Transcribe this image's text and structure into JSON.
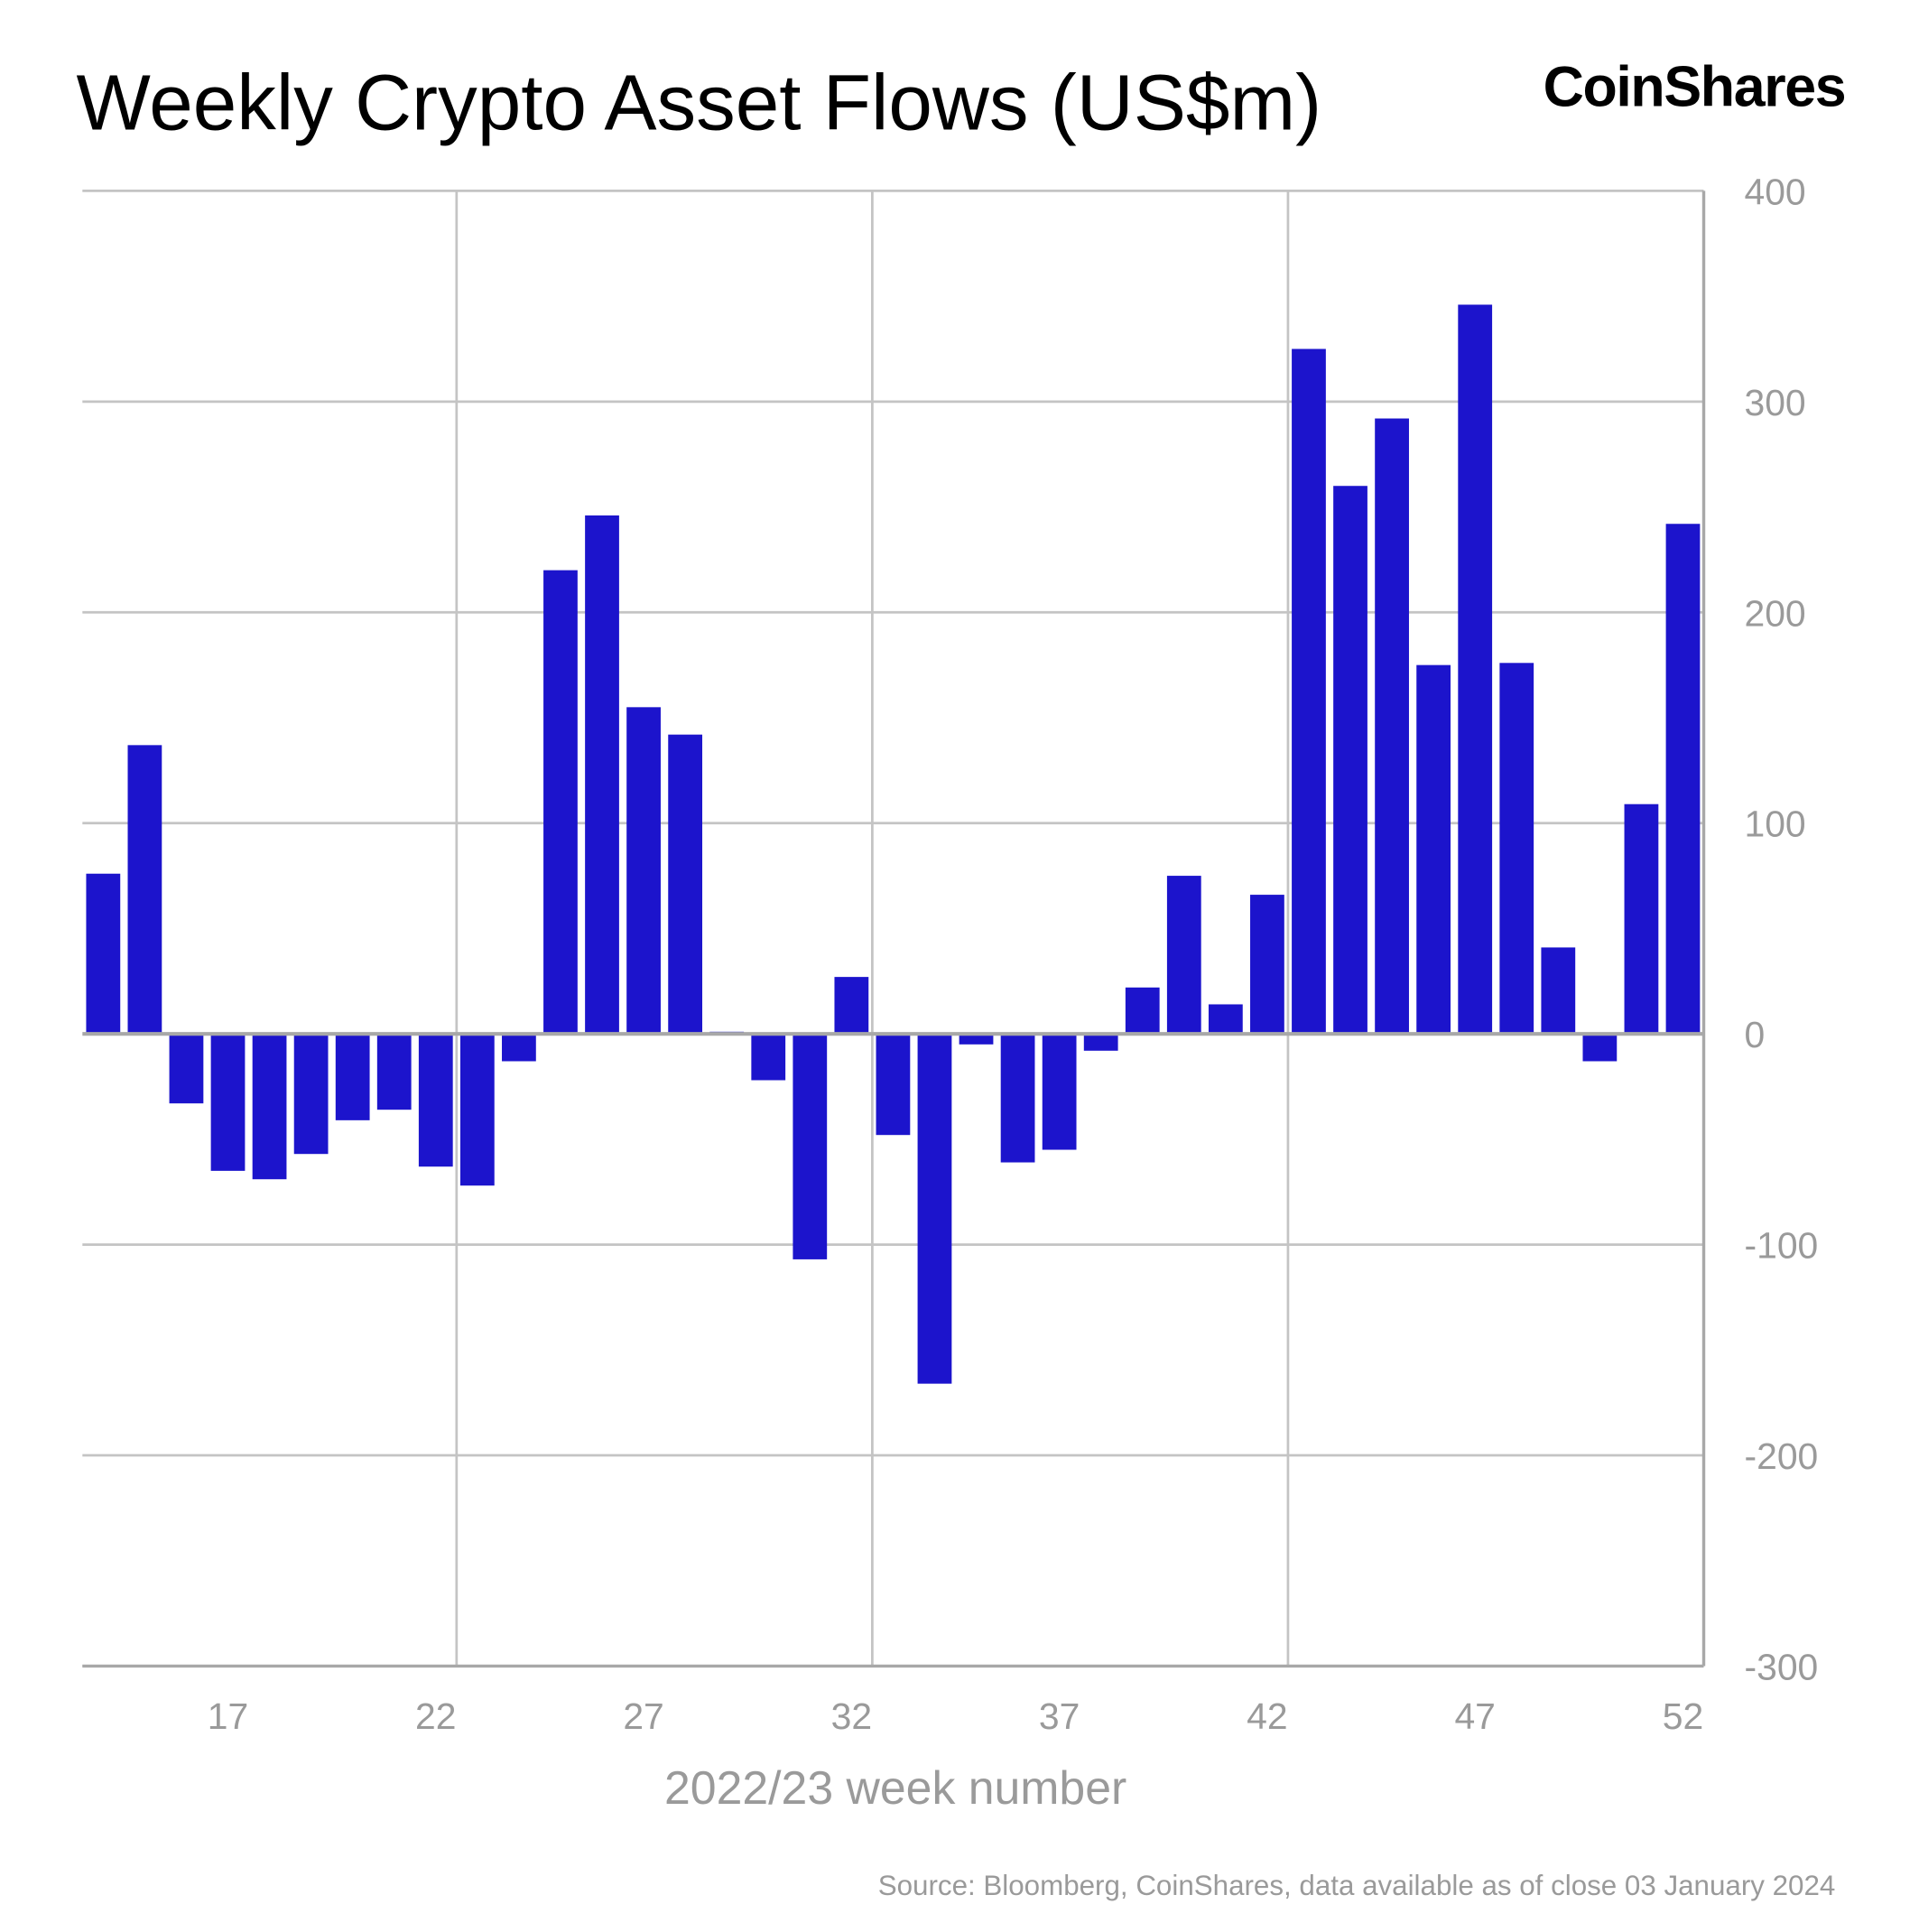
{
  "chart_data": {
    "type": "bar",
    "title": "Weekly Crypto Asset Flows (US$m)",
    "logo": "CoinShares",
    "xlabel": "2022/23 week number",
    "ylabel": "",
    "source": "Source: Bloomberg, CoinShares, data available as of close 03 January 2024",
    "ylim": [
      -300,
      400
    ],
    "yticks": [
      "400",
      "300",
      "200",
      "100",
      "0",
      "-100",
      "-200",
      "-300"
    ],
    "ytick_values": [
      400,
      300,
      200,
      100,
      0,
      -100,
      -200,
      -300
    ],
    "xticks": [
      "17",
      "22",
      "27",
      "32",
      "37",
      "42",
      "47",
      "52"
    ],
    "xtick_values": [
      17,
      22,
      27,
      32,
      37,
      42,
      47,
      52
    ],
    "y_axis_position": "right",
    "grid": true,
    "bar_color": "#1c14cc",
    "categories": [
      14,
      15,
      16,
      17,
      18,
      19,
      20,
      21,
      22,
      23,
      24,
      25,
      26,
      27,
      28,
      29,
      30,
      31,
      32,
      33,
      34,
      35,
      36,
      37,
      38,
      39,
      40,
      41,
      42,
      43,
      44,
      45,
      46,
      47,
      48,
      49,
      50,
      51,
      52
    ],
    "values": [
      76,
      137,
      -33,
      -65,
      -69,
      -57,
      -41,
      -36,
      -63,
      -72,
      -13,
      220,
      246,
      155,
      142,
      1,
      -22,
      -107,
      27,
      -48,
      -166,
      -5,
      -61,
      -55,
      -8,
      22,
      75,
      14,
      66,
      325,
      260,
      292,
      175,
      346,
      176,
      41,
      -13,
      109,
      242
    ]
  }
}
